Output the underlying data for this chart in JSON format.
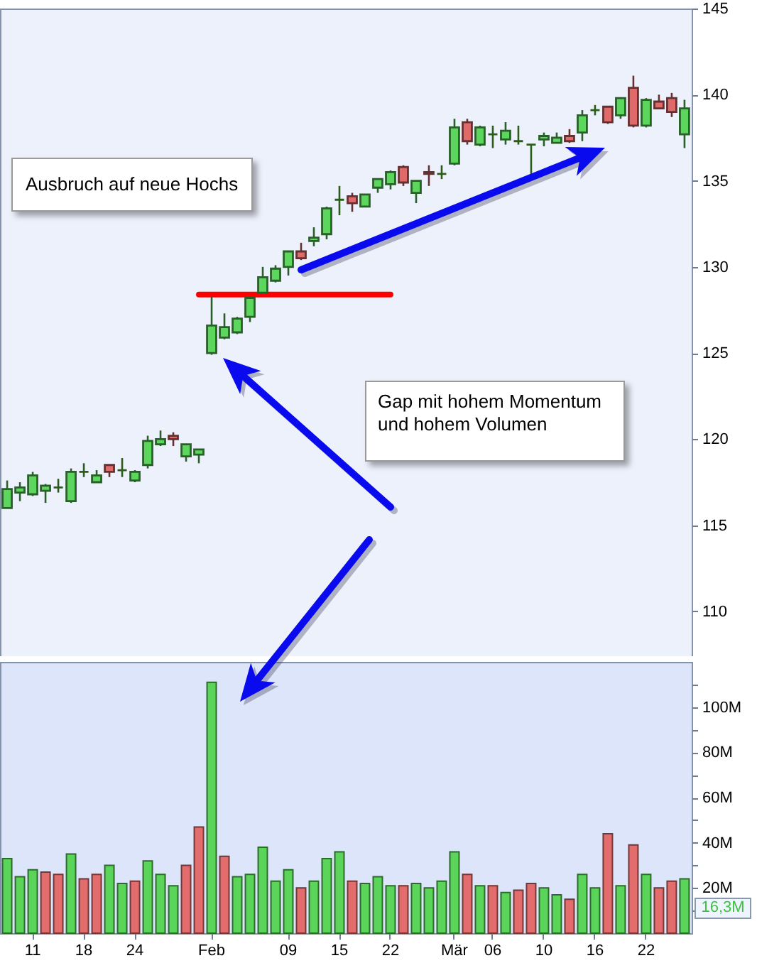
{
  "chart_data": [
    {
      "type": "candlestick",
      "categories": [
        null,
        null,
        null,
        null,
        null,
        null,
        null,
        null,
        null,
        null,
        null,
        null,
        null,
        null,
        null,
        null,
        null,
        null,
        null,
        null,
        null,
        null,
        null,
        null,
        null,
        null,
        null,
        null,
        null,
        null,
        null,
        null,
        null,
        null,
        null,
        null,
        null,
        null,
        null,
        null,
        null,
        null,
        null,
        null,
        null,
        null,
        null,
        null,
        null,
        null,
        null,
        null,
        null,
        null
      ],
      "ohlc": [
        [
          116.0,
          117.6,
          116.0,
          117.1
        ],
        [
          116.9,
          117.5,
          116.4,
          117.2
        ],
        [
          116.8,
          118.1,
          116.7,
          117.9
        ],
        [
          117.0,
          117.4,
          116.3,
          117.3
        ],
        [
          117.2,
          117.7,
          116.9,
          117.2
        ],
        [
          116.4,
          118.3,
          116.3,
          118.1
        ],
        [
          118.1,
          118.6,
          117.8,
          118.1
        ],
        [
          117.5,
          118.2,
          117.5,
          117.9
        ],
        [
          118.5,
          118.5,
          117.8,
          118.1
        ],
        [
          118.2,
          118.9,
          117.8,
          118.2
        ],
        [
          117.6,
          118.2,
          117.5,
          118.1
        ],
        [
          118.5,
          120.2,
          118.3,
          119.9
        ],
        [
          119.7,
          120.5,
          119.6,
          120.0
        ],
        [
          120.2,
          120.4,
          119.6,
          120.0
        ],
        [
          119.0,
          119.7,
          118.7,
          119.7
        ],
        [
          119.1,
          119.4,
          118.6,
          119.4
        ],
        [
          125.0,
          128.3,
          124.9,
          126.6
        ],
        [
          125.9,
          127.3,
          125.8,
          126.5
        ],
        [
          126.2,
          127.1,
          126.1,
          127.0
        ],
        [
          127.1,
          128.3,
          126.8,
          128.2
        ],
        [
          128.5,
          130.0,
          128.5,
          129.4
        ],
        [
          129.2,
          130.1,
          129.1,
          129.9
        ],
        [
          130.0,
          130.9,
          129.5,
          130.9
        ],
        [
          130.9,
          131.4,
          130.4,
          130.5
        ],
        [
          131.5,
          132.3,
          131.2,
          131.7
        ],
        [
          131.9,
          133.5,
          131.6,
          133.4
        ],
        [
          133.9,
          134.7,
          133.0,
          133.9
        ],
        [
          134.1,
          134.3,
          133.2,
          133.7
        ],
        [
          133.5,
          134.2,
          133.5,
          134.2
        ],
        [
          134.6,
          135.1,
          134.3,
          135.1
        ],
        [
          134.8,
          135.6,
          134.5,
          135.5
        ],
        [
          135.8,
          135.9,
          134.7,
          134.9
        ],
        [
          134.3,
          135.0,
          133.7,
          135.0
        ],
        [
          135.5,
          135.9,
          134.7,
          135.4
        ],
        [
          135.4,
          135.9,
          135.1,
          135.4
        ],
        [
          136.0,
          138.6,
          135.9,
          138.1
        ],
        [
          138.4,
          138.6,
          137.1,
          137.3
        ],
        [
          137.1,
          138.2,
          137.0,
          138.1
        ],
        [
          137.7,
          138.2,
          136.9,
          137.7
        ],
        [
          137.4,
          138.4,
          137.1,
          137.9
        ],
        [
          137.3,
          138.2,
          137.1,
          137.3
        ],
        [
          137.1,
          137.1,
          135.4,
          137.1
        ],
        [
          137.4,
          137.8,
          137.0,
          137.6
        ],
        [
          137.2,
          137.8,
          137.2,
          137.5
        ],
        [
          137.6,
          138.0,
          137.2,
          137.3
        ],
        [
          137.8,
          139.1,
          137.3,
          138.8
        ],
        [
          139.1,
          139.4,
          138.8,
          139.1
        ],
        [
          139.3,
          139.3,
          138.3,
          138.4
        ],
        [
          138.8,
          139.8,
          138.6,
          139.8
        ],
        [
          140.4,
          141.1,
          138.1,
          138.2
        ],
        [
          138.2,
          139.8,
          138.1,
          139.7
        ],
        [
          139.6,
          140.0,
          139.2,
          139.2
        ],
        [
          139.8,
          140.1,
          138.7,
          139.0
        ],
        [
          137.7,
          139.7,
          136.9,
          139.2
        ]
      ],
      "colors": [
        "#5cd65c",
        "#5cd65c",
        "#5cd65c",
        "#5cd65c",
        "#2b5c1a",
        "#5cd65c",
        "#2b5c1a",
        "#5cd65c",
        "#e06a6a",
        "#2b5c1a",
        "#5cd65c",
        "#5cd65c",
        "#5cd65c",
        "#e06a6a",
        "#5cd65c",
        "#5cd65c",
        "#5cd65c",
        "#5cd65c",
        "#5cd65c",
        "#5cd65c",
        "#5cd65c",
        "#5cd65c",
        "#5cd65c",
        "#e06a6a",
        "#5cd65c",
        "#5cd65c",
        "#2b5c1a",
        "#e06a6a",
        "#5cd65c",
        "#5cd65c",
        "#5cd65c",
        "#e06a6a",
        "#5cd65c",
        "#e06a6a",
        "#2b5c1a",
        "#5cd65c",
        "#e06a6a",
        "#5cd65c",
        "#2b5c1a",
        "#5cd65c",
        "#2b5c1a",
        "#2b5c1a",
        "#5cd65c",
        "#5cd65c",
        "#e06a6a",
        "#5cd65c",
        "#2b5c1a",
        "#e06a6a",
        "#5cd65c",
        "#e06a6a",
        "#5cd65c",
        "#e06a6a",
        "#e06a6a",
        "#5cd65c"
      ],
      "series": [
        {
          "type": "line",
          "color": "#ff0000",
          "values": [
            null,
            null,
            null,
            null,
            null,
            null,
            null,
            null,
            null,
            null,
            null,
            null,
            null,
            null,
            null,
            128.4,
            128.4,
            128.4,
            128.4,
            128.4,
            128.4,
            128.4,
            128.4,
            128.4,
            128.4,
            128.4,
            128.4,
            128.4,
            128.4,
            128.4,
            128.4,
            null,
            null,
            null,
            null,
            null,
            null,
            null,
            null,
            null,
            null,
            null,
            null,
            null,
            null,
            null,
            null,
            null,
            null,
            null,
            null,
            null,
            null,
            null
          ]
        }
      ],
      "ylim": [
        107.4,
        145
      ],
      "yticks": [
        110,
        115,
        120,
        125,
        130,
        135,
        140,
        145
      ],
      "tick_labels": "y",
      "annotations": [
        "Ausbruch auf neue Hochs",
        "Gap mit hohem Momentum und hohem Volumen"
      ]
    },
    {
      "type": "bar",
      "categories": [
        null,
        null,
        "11",
        null,
        null,
        null,
        "18",
        null,
        null,
        null,
        "24",
        null,
        null,
        null,
        null,
        null,
        "Feb",
        null,
        null,
        null,
        null,
        null,
        "09",
        null,
        null,
        null,
        "15",
        null,
        null,
        null,
        "22",
        null,
        null,
        null,
        null,
        "Mär",
        null,
        null,
        "06",
        null,
        null,
        null,
        "10",
        null,
        null,
        null,
        "16",
        null,
        null,
        null,
        "22",
        null,
        null,
        null
      ],
      "values": [
        33,
        25,
        28,
        27,
        26,
        35,
        24,
        26,
        30,
        22,
        23,
        32,
        26,
        21,
        30,
        47,
        111,
        34,
        25,
        26,
        38,
        23,
        28,
        20,
        23,
        33,
        36,
        23,
        22,
        25,
        21,
        21,
        22,
        20,
        23,
        36,
        26,
        21,
        21,
        18,
        19,
        22,
        20,
        17,
        15,
        26,
        20,
        44,
        21,
        39,
        26,
        20,
        23,
        24
      ],
      "colors": [
        "#5ad55a",
        "#5ad55a",
        "#5ad55a",
        "#e36d6d",
        "#e36d6d",
        "#5ad55a",
        "#e36d6d",
        "#e36d6d",
        "#5ad55a",
        "#5ad55a",
        "#e36d6d",
        "#5ad55a",
        "#5ad55a",
        "#5ad55a",
        "#e36d6d",
        "#e36d6d",
        "#5ad55a",
        "#e36d6d",
        "#5ad55a",
        "#5ad55a",
        "#5ad55a",
        "#5ad55a",
        "#5ad55a",
        "#e36d6d",
        "#5ad55a",
        "#5ad55a",
        "#5ad55a",
        "#e36d6d",
        "#5ad55a",
        "#5ad55a",
        "#5ad55a",
        "#e36d6d",
        "#5ad55a",
        "#5ad55a",
        "#5ad55a",
        "#5ad55a",
        "#e36d6d",
        "#5ad55a",
        "#e36d6d",
        "#5ad55a",
        "#e36d6d",
        "#e36d6d",
        "#5ad55a",
        "#5ad55a",
        "#e36d6d",
        "#5ad55a",
        "#5ad55a",
        "#e36d6d",
        "#5ad55a",
        "#e36d6d",
        "#5ad55a",
        "#e36d6d",
        "#e36d6d",
        "#5ad55a"
      ],
      "ylim": [
        0,
        120
      ],
      "yticks": [
        {
          "value": 10,
          "label": null
        },
        {
          "value": 20,
          "label": "20M"
        },
        {
          "value": 30,
          "label": null
        },
        {
          "value": 40,
          "label": "40M"
        },
        {
          "value": 50,
          "label": null
        },
        {
          "value": 60,
          "label": "60M"
        },
        {
          "value": 70,
          "label": null
        },
        {
          "value": 80,
          "label": "80M"
        },
        {
          "value": 90,
          "label": null
        },
        {
          "value": 100,
          "label": "100M"
        },
        {
          "value": 110,
          "label": null
        }
      ],
      "annotations": [
        "16,3M"
      ]
    }
  ]
}
